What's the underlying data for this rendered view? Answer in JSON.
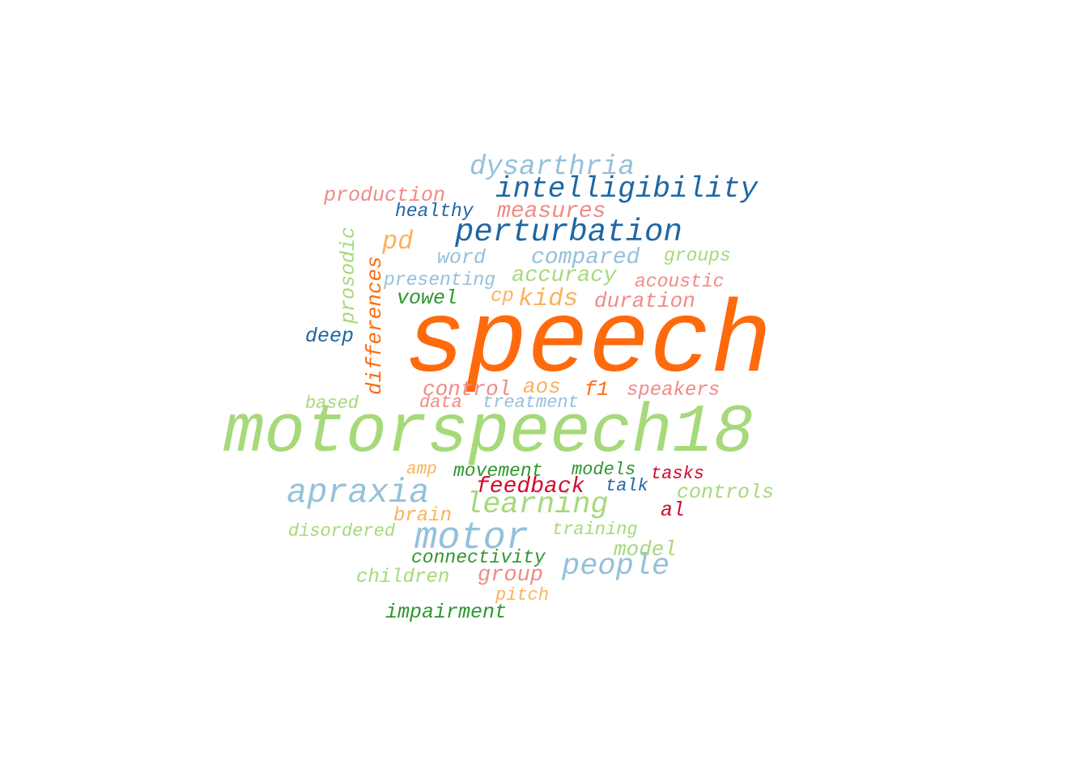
{
  "palette": {
    "orange": "#ff6a0d",
    "light_green": "#a6d97a",
    "light_blue": "#94c1db",
    "dark_blue": "#1f66a3",
    "pink": "#f08a87",
    "light_orange": "#fbb25a",
    "dark_green": "#2f962e",
    "red": "#d10a2c"
  },
  "words": [
    {
      "text": "speech",
      "color": "#ff6a0d"
    },
    {
      "text": "motorspeech18",
      "color": "#a6d97a"
    },
    {
      "text": "intelligibility",
      "color": "#1f66a3"
    },
    {
      "text": "perturbation",
      "color": "#1f66a3"
    },
    {
      "text": "dysarthria",
      "color": "#94c1db"
    },
    {
      "text": "apraxia",
      "color": "#94c1db"
    },
    {
      "text": "motor",
      "color": "#94c1db"
    },
    {
      "text": "learning",
      "color": "#a6d97a"
    },
    {
      "text": "people",
      "color": "#94c1db"
    },
    {
      "text": "production",
      "color": "#f08a87"
    },
    {
      "text": "healthy",
      "color": "#1f66a3"
    },
    {
      "text": "measures",
      "color": "#f08a87"
    },
    {
      "text": "pd",
      "color": "#fbb25a"
    },
    {
      "text": "word",
      "color": "#94c1db"
    },
    {
      "text": "compared",
      "color": "#94c1db"
    },
    {
      "text": "groups",
      "color": "#a6d97a"
    },
    {
      "text": "prosodic",
      "color": "#a6d97a"
    },
    {
      "text": "differences",
      "color": "#ff6a0d"
    },
    {
      "text": "presenting",
      "color": "#94c1db"
    },
    {
      "text": "accuracy",
      "color": "#a6d97a"
    },
    {
      "text": "acoustic",
      "color": "#f08a87"
    },
    {
      "text": "vowel",
      "color": "#2f962e"
    },
    {
      "text": "cp",
      "color": "#fbb25a"
    },
    {
      "text": "kids",
      "color": "#fbb25a"
    },
    {
      "text": "duration",
      "color": "#f08a87"
    },
    {
      "text": "deep",
      "color": "#1f66a3"
    },
    {
      "text": "control",
      "color": "#f08a87"
    },
    {
      "text": "aos",
      "color": "#fbb25a"
    },
    {
      "text": "f1",
      "color": "#ff6a0d"
    },
    {
      "text": "speakers",
      "color": "#f08a87"
    },
    {
      "text": "based",
      "color": "#a6d97a"
    },
    {
      "text": "data",
      "color": "#f08a87"
    },
    {
      "text": "treatment",
      "color": "#94c1db"
    },
    {
      "text": "amp",
      "color": "#fbb25a"
    },
    {
      "text": "movement",
      "color": "#2f962e"
    },
    {
      "text": "models",
      "color": "#2f962e"
    },
    {
      "text": "tasks",
      "color": "#d10a2c"
    },
    {
      "text": "feedback",
      "color": "#d10a2c"
    },
    {
      "text": "talk",
      "color": "#1f66a3"
    },
    {
      "text": "controls",
      "color": "#a6d97a"
    },
    {
      "text": "al",
      "color": "#d10a2c"
    },
    {
      "text": "brain",
      "color": "#fbb25a"
    },
    {
      "text": "disordered",
      "color": "#a6d97a"
    },
    {
      "text": "training",
      "color": "#a6d97a"
    },
    {
      "text": "connectivity",
      "color": "#2f962e"
    },
    {
      "text": "model",
      "color": "#a6d97a"
    },
    {
      "text": "children",
      "color": "#a6d97a"
    },
    {
      "text": "group",
      "color": "#f08a87"
    },
    {
      "text": "pitch",
      "color": "#fbb25a"
    },
    {
      "text": "impairment",
      "color": "#2f962e"
    }
  ]
}
